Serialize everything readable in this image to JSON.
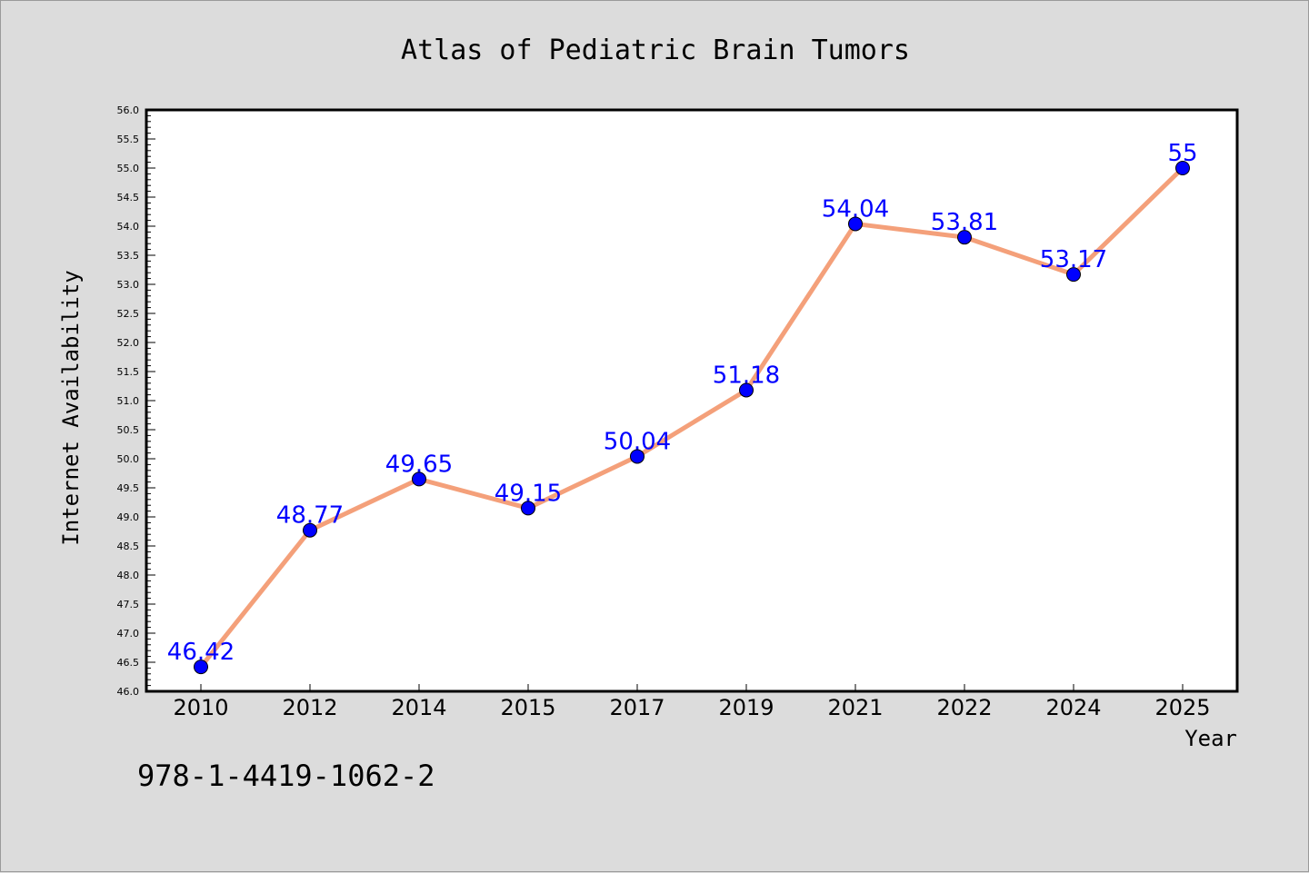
{
  "chart_data": {
    "type": "line",
    "title": "Atlas of Pediatric Brain Tumors",
    "xlabel": "Year",
    "ylabel": "Internet Availability",
    "categories": [
      "2010",
      "2012",
      "2014",
      "2015",
      "2017",
      "2019",
      "2021",
      "2022",
      "2024",
      "2025"
    ],
    "series": [
      {
        "values": [
          46.42,
          48.77,
          49.65,
          49.15,
          50.04,
          51.18,
          54.04,
          53.81,
          53.17,
          55
        ],
        "data_labels": [
          "46.42",
          "48.77",
          "49.65",
          "49.15",
          "50.04",
          "51.18",
          "54.04",
          "53.81",
          "53.17",
          "55"
        ],
        "line_color": "#f4a07a",
        "marker_color": "#0000ff",
        "label_color": "#0000ff"
      }
    ],
    "ylim": [
      46.0,
      56.0
    ],
    "yticks": [
      "46.0",
      "46.5",
      "47.0",
      "47.5",
      "48.0",
      "48.5",
      "49.0",
      "49.5",
      "50.0",
      "50.5",
      "51.0",
      "51.5",
      "52.0",
      "52.5",
      "53.0",
      "53.5",
      "54.0",
      "54.5",
      "55.0",
      "55.5",
      "56.0"
    ],
    "grid": false,
    "legend": "none"
  },
  "footer": {
    "isbn": "978-1-4419-1062-2"
  }
}
